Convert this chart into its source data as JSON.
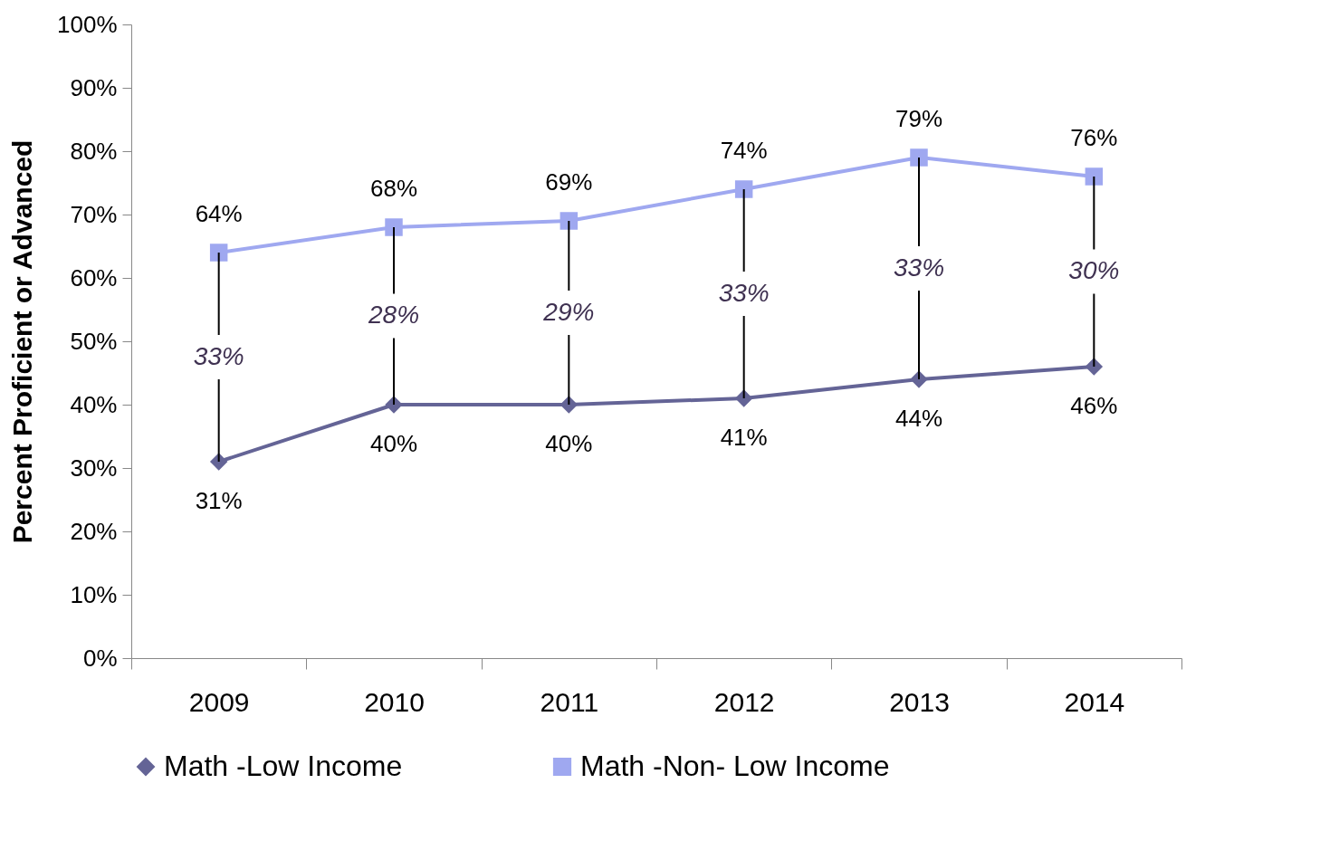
{
  "chart_data": {
    "type": "line",
    "ylabel": "Percent Proficient or Advanced",
    "categories": [
      "2009",
      "2010",
      "2011",
      "2012",
      "2013",
      "2014"
    ],
    "series": [
      {
        "name": "Math -Low Income",
        "color": "#646496",
        "marker": "diamond",
        "values": [
          31,
          40,
          40,
          41,
          44,
          46
        ],
        "value_labels": [
          "31%",
          "40%",
          "40%",
          "41%",
          "44%",
          "46%"
        ]
      },
      {
        "name": "Math -Non- Low Income",
        "color": "#9fa8f0",
        "marker": "square",
        "values": [
          64,
          68,
          69,
          74,
          79,
          76
        ],
        "value_labels": [
          "64%",
          "68%",
          "69%",
          "74%",
          "79%",
          "76%"
        ]
      }
    ],
    "annotations": [
      {
        "text": "33%",
        "x": "2009",
        "y": 31
      },
      {
        "text": "28%",
        "x": "2010",
        "y": 40
      },
      {
        "text": "29%",
        "x": "2011",
        "y": 40
      },
      {
        "text": "33%",
        "x": "2012",
        "y": 41
      },
      {
        "text": "33%",
        "x": "2013",
        "y": 44
      },
      {
        "text": "30%",
        "x": "2014",
        "y": 46
      }
    ],
    "ylim": [
      0,
      100
    ],
    "yticks": [
      {
        "value": 0,
        "label": "0%"
      },
      {
        "value": 10,
        "label": "10%"
      },
      {
        "value": 20,
        "label": "20%"
      },
      {
        "value": 30,
        "label": "30%"
      },
      {
        "value": 40,
        "label": "40%"
      },
      {
        "value": 50,
        "label": "50%"
      },
      {
        "value": 60,
        "label": "60%"
      },
      {
        "value": 70,
        "label": "70%"
      },
      {
        "value": 80,
        "label": "80%"
      },
      {
        "value": 90,
        "label": "90%"
      },
      {
        "value": 100,
        "label": "100%"
      }
    ],
    "grid": false,
    "legend": "bottom"
  }
}
